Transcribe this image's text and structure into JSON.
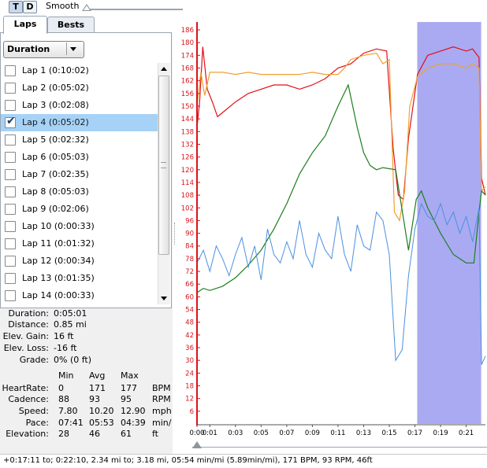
{
  "toolbar": {
    "t_label": "T",
    "d_label": "D",
    "smooth_label": "Smooth"
  },
  "tabs": {
    "laps": "Laps",
    "bests": "Bests"
  },
  "dropdown": {
    "selected": "Duration"
  },
  "laps": [
    {
      "label": "Lap 1 (0:10:02)",
      "checked": false
    },
    {
      "label": "Lap 2 (0:05:02)",
      "checked": false
    },
    {
      "label": "Lap 3 (0:02:08)",
      "checked": false
    },
    {
      "label": "Lap 4 (0:05:02)",
      "checked": true
    },
    {
      "label": "Lap 5 (0:02:32)",
      "checked": false
    },
    {
      "label": "Lap 6 (0:05:03)",
      "checked": false
    },
    {
      "label": "Lap 7 (0:02:35)",
      "checked": false
    },
    {
      "label": "Lap 8 (0:05:03)",
      "checked": false
    },
    {
      "label": "Lap 9 (0:02:06)",
      "checked": false
    },
    {
      "label": "Lap 10 (0:00:33)",
      "checked": false
    },
    {
      "label": "Lap 11 (0:01:32)",
      "checked": false
    },
    {
      "label": "Lap 12 (0:00:34)",
      "checked": false
    },
    {
      "label": "Lap 13 (0:01:35)",
      "checked": false
    },
    {
      "label": "Lap 14 (0:00:33)",
      "checked": false
    }
  ],
  "summary": {
    "duration_label": "Duration:",
    "duration": "0:05:01",
    "distance_label": "Distance:",
    "distance": "0.85 mi",
    "elev_gain_label": "Elev. Gain:",
    "elev_gain": "16 ft",
    "elev_loss_label": "Elev. Loss:",
    "elev_loss": "-16 ft",
    "grade_label": "Grade:",
    "grade": "0% (0 ft)"
  },
  "metrics": {
    "headers": {
      "min": "Min",
      "avg": "Avg",
      "max": "Max"
    },
    "rows": [
      {
        "label": "HeartRate:",
        "min": "0",
        "avg": "171",
        "max": "177",
        "unit": "BPM"
      },
      {
        "label": "Cadence:",
        "min": "88",
        "avg": "93",
        "max": "95",
        "unit": "RPM"
      },
      {
        "label": "Speed:",
        "min": "7.80",
        "avg": "10.20",
        "max": "12.90",
        "unit": "mph"
      },
      {
        "label": "Pace:",
        "min": "07:41",
        "avg": "05:53",
        "max": "04:39",
        "unit": "min/"
      },
      {
        "label": "Elevation:",
        "min": "28",
        "avg": "46",
        "max": "61",
        "unit": "ft"
      }
    ]
  },
  "chart_data": {
    "type": "line",
    "y_ticks": [
      "186",
      "180",
      "174",
      "168",
      "162",
      "156",
      "150",
      "144",
      "138",
      "132",
      "126",
      "120",
      "114",
      "108",
      "102",
      "96",
      "90",
      "84",
      "78",
      "72",
      "66",
      "60",
      "54",
      "48",
      "42",
      "36",
      "30",
      "24",
      "18",
      "12",
      "6"
    ],
    "x_ticks": [
      "0:00",
      "0:01",
      "0:03",
      "0:05",
      "0:07",
      "0:09",
      "0:11",
      "0:13",
      "0:15",
      "0:17",
      "0:19",
      "0:21"
    ],
    "ylim": [
      0,
      186
    ],
    "xlim_minutes": [
      0,
      22.5
    ],
    "highlight_minutes": [
      17.18,
      22.17
    ],
    "colors": {
      "heartrate": "#e0101a",
      "cadence": "#f0a030",
      "elevation": "#1e7d1e",
      "speed": "#4a90e0",
      "highlight": "#9b9bf0"
    },
    "series": [
      {
        "key": "heartrate",
        "x": [
          0,
          0.2,
          0.45,
          0.8,
          1.2,
          1.6,
          2.2,
          3,
          4,
          5,
          6,
          7,
          8,
          9,
          10,
          11,
          12,
          13,
          14,
          14.8,
          15.3,
          15.7,
          16.1,
          16.5,
          17.2,
          18,
          19,
          20,
          21,
          21.5,
          22,
          22.2,
          22.5
        ],
        "y": [
          140,
          152,
          178,
          158,
          152,
          145,
          148,
          152,
          156,
          158,
          160,
          160,
          158,
          160,
          163,
          168,
          170,
          175,
          177,
          176,
          130,
          108,
          106,
          135,
          165,
          174,
          176,
          178,
          176,
          177,
          173,
          116,
          108
        ]
      },
      {
        "key": "cadence",
        "x": [
          0,
          0.3,
          0.6,
          1,
          2,
          3,
          4,
          5,
          6,
          7,
          8,
          9,
          10,
          11,
          11.5,
          12,
          13,
          14,
          14.5,
          15,
          15.4,
          15.8,
          16.2,
          16.6,
          17.2,
          18,
          19,
          20,
          21,
          21.5,
          22,
          22.2,
          22.5
        ],
        "y": [
          150,
          166,
          155,
          166,
          166,
          165,
          166,
          165,
          165,
          165,
          165,
          166,
          165,
          165,
          168,
          172,
          174,
          175,
          170,
          172,
          100,
          96,
          110,
          150,
          164,
          168,
          170,
          170,
          168,
          170,
          168,
          110,
          112
        ]
      },
      {
        "key": "elevation",
        "x": [
          0,
          0.5,
          1,
          2,
          3,
          4,
          5,
          6,
          7,
          8,
          9,
          10,
          11,
          11.8,
          12.5,
          13,
          13.5,
          14,
          14.5,
          15.5,
          16.5,
          17.1,
          17.5,
          18,
          19,
          20,
          21,
          21.6,
          22,
          22.2,
          22.5
        ],
        "y": [
          62,
          64,
          63,
          65,
          69,
          75,
          82,
          92,
          104,
          118,
          128,
          136,
          150,
          160,
          140,
          128,
          122,
          120,
          121,
          120,
          82,
          106,
          110,
          102,
          90,
          80,
          76,
          76,
          100,
          110,
          108
        ]
      },
      {
        "key": "speed",
        "x": [
          0,
          0.5,
          1,
          1.5,
          2,
          2.5,
          3,
          3.5,
          4,
          4.5,
          5,
          5.5,
          6,
          6.5,
          7,
          7.5,
          8,
          8.5,
          9,
          9.5,
          10,
          10.5,
          11,
          11.5,
          12,
          12.5,
          13,
          13.5,
          14,
          14.5,
          15,
          15.5,
          16,
          16.5,
          17,
          17.5,
          18,
          18.5,
          19,
          19.5,
          20,
          20.5,
          21,
          21.5,
          22,
          22.2,
          22.5
        ],
        "y": [
          76,
          82,
          72,
          84,
          78,
          70,
          80,
          88,
          74,
          84,
          68,
          92,
          80,
          76,
          86,
          78,
          96,
          80,
          74,
          90,
          82,
          78,
          98,
          80,
          72,
          94,
          84,
          82,
          100,
          96,
          80,
          30,
          35,
          70,
          92,
          104,
          98,
          96,
          104,
          94,
          100,
          90,
          98,
          86,
          102,
          28,
          32
        ]
      }
    ]
  },
  "status": "+0:17:11 to; 0:22:10, 2.34 mi to; 3.18 mi, 05:54 min/mi (5.89min/mi), 171 BPM, 93 RPM, 46ft"
}
